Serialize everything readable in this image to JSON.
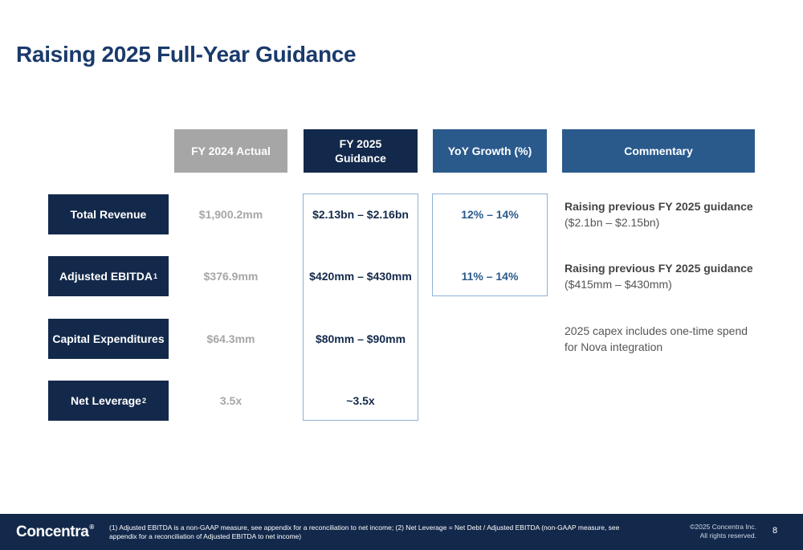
{
  "title": "Raising 2025 Full-Year Guidance",
  "columns": {
    "actual": "FY 2024 Actual",
    "guidance": "FY 2025\nGuidance",
    "growth": "YoY Growth (%)",
    "commentary": "Commentary"
  },
  "rows": [
    {
      "label": "Total Revenue",
      "sup": "",
      "actual": "$1,900.2mm",
      "guidance": "$2.13bn – $2.16bn",
      "growth": "12% – 14%",
      "comment_bold": "Raising previous FY 2025 guidance",
      "comment_plain": "($2.1bn – $2.15bn)"
    },
    {
      "label": "Adjusted EBITDA",
      "sup": "1",
      "actual": "$376.9mm",
      "guidance": "$420mm – $430mm",
      "growth": "11% – 14%",
      "comment_bold": "Raising previous FY 2025 guidance",
      "comment_plain": "($415mm – $430mm)"
    },
    {
      "label": "Capital Expenditures",
      "sup": "",
      "actual": "$64.3mm",
      "guidance": "$80mm – $90mm",
      "growth": "",
      "comment_bold": "",
      "comment_plain": "2025 capex includes one-time spend for Nova integration"
    },
    {
      "label": "Net Leverage",
      "sup": "2",
      "actual": "3.5x",
      "guidance": "~3.5x",
      "growth": "",
      "comment_bold": "",
      "comment_plain": ""
    }
  ],
  "footer": {
    "logo": "Concentra",
    "logo_mark": "®",
    "footnote": "(1) Adjusted EBITDA is a non-GAAP measure, see appendix for a reconciliation to net income; (2) Net Leverage = Net Debt / Adjusted EBITDA (non-GAAP measure, see appendix for a reconciliation of Adjusted EBITDA to net income)",
    "copyright": "©2025 Concentra Inc.\nAll rights reserved.",
    "page": "8"
  },
  "colors": {
    "navy": "#13294b",
    "blue": "#2a5a8c",
    "grey": "#a6a6a6",
    "title": "#1a3a6b",
    "box_border": "#8fb0d4"
  }
}
